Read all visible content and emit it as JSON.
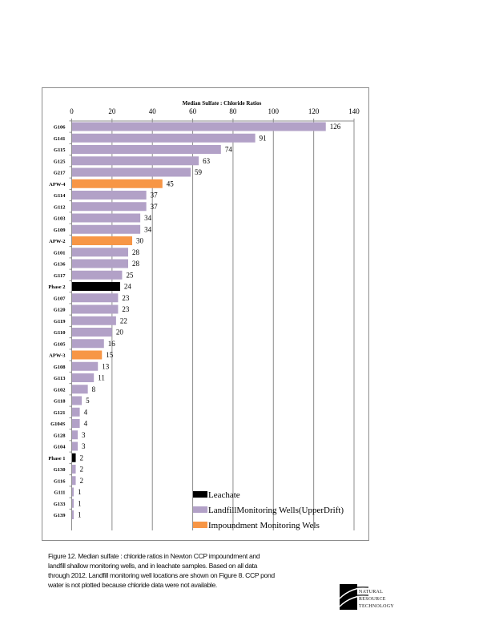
{
  "chart_data": {
    "type": "bar",
    "orientation": "horizontal",
    "title": "Median   Sulfate    : Chloride    Ratios",
    "xlabel": "",
    "ylabel": "",
    "xlim": [
      0,
      140
    ],
    "xticks": [
      0,
      20,
      40,
      60,
      80,
      100,
      120,
      140
    ],
    "xtick_labels": [
      "0",
      "20",
      "40",
      "60",
      "80",
      "100",
      "120",
      "140"
    ],
    "x_axis_position": "top",
    "grid": true,
    "legend_position": "bottom-right",
    "series_colors": {
      "Leachate": "#000000",
      "LandfillMonitoring Wells(UpperDrift)": "#b2a1c7",
      "Impoundment  Monitoring Wels": "#f79646"
    },
    "categories": [
      "G106",
      "G141",
      "G115",
      "G125",
      "G217",
      "APW-4",
      "G114",
      "G112",
      "G103",
      "G109",
      "APW-2",
      "G101",
      "G136",
      "G117",
      "Phase 2",
      "G107",
      "G120",
      "G119",
      "G110",
      "G105",
      "APW-3",
      "G108",
      "G113",
      "G102",
      "G118",
      "G121",
      "G104S",
      "G128",
      "G104",
      "Phase 1",
      "G130",
      "G116",
      "G111",
      "G133",
      "G139"
    ],
    "values": [
      126,
      91,
      74,
      63,
      59,
      45,
      37,
      37,
      34,
      34,
      30,
      28,
      28,
      25,
      24,
      23,
      23,
      22,
      20,
      16,
      15,
      13,
      11,
      8,
      5,
      4,
      4,
      3,
      3,
      2,
      2,
      2,
      1,
      1,
      1
    ],
    "value_labels": [
      "126",
      "91",
      "74",
      "63",
      "59",
      "45",
      "37",
      "37",
      "34",
      "34",
      "30",
      "28",
      "28",
      "25",
      "24",
      "23",
      "23",
      "22",
      "20",
      "16",
      "15",
      "13",
      "11",
      "8",
      "5",
      "4",
      "4",
      "3",
      "3",
      "2",
      "2",
      "2",
      "1",
      "1",
      "1"
    ],
    "groups": [
      "LandfillMonitoring Wells(UpperDrift)",
      "LandfillMonitoring Wells(UpperDrift)",
      "LandfillMonitoring Wells(UpperDrift)",
      "LandfillMonitoring Wells(UpperDrift)",
      "LandfillMonitoring Wells(UpperDrift)",
      "Impoundment  Monitoring Wels",
      "LandfillMonitoring Wells(UpperDrift)",
      "LandfillMonitoring Wells(UpperDrift)",
      "LandfillMonitoring Wells(UpperDrift)",
      "LandfillMonitoring Wells(UpperDrift)",
      "Impoundment  Monitoring Wels",
      "LandfillMonitoring Wells(UpperDrift)",
      "LandfillMonitoring Wells(UpperDrift)",
      "LandfillMonitoring Wells(UpperDrift)",
      "Leachate",
      "LandfillMonitoring Wells(UpperDrift)",
      "LandfillMonitoring Wells(UpperDrift)",
      "LandfillMonitoring Wells(UpperDrift)",
      "LandfillMonitoring Wells(UpperDrift)",
      "LandfillMonitoring Wells(UpperDrift)",
      "Impoundment  Monitoring Wels",
      "LandfillMonitoring Wells(UpperDrift)",
      "LandfillMonitoring Wells(UpperDrift)",
      "LandfillMonitoring Wells(UpperDrift)",
      "LandfillMonitoring Wells(UpperDrift)",
      "LandfillMonitoring Wells(UpperDrift)",
      "LandfillMonitoring Wells(UpperDrift)",
      "LandfillMonitoring Wells(UpperDrift)",
      "LandfillMonitoring Wells(UpperDrift)",
      "Leachate",
      "LandfillMonitoring Wells(UpperDrift)",
      "LandfillMonitoring Wells(UpperDrift)",
      "LandfillMonitoring Wells(UpperDrift)",
      "LandfillMonitoring Wells(UpperDrift)",
      "LandfillMonitoring Wells(UpperDrift)"
    ],
    "legend": [
      {
        "label": "Leachate",
        "color": "#000000"
      },
      {
        "label": "LandfillMonitoring Wells(UpperDrift)",
        "color": "#b2a1c7"
      },
      {
        "label": "Impoundment  Monitoring Wels",
        "color": "#f79646"
      }
    ]
  },
  "caption": "Figure 12. Median sulfate : chloride ratios in Newton CCP impoundment and landfill shallow monitoring wells, and in leachate samples. Based on all data through 2012. Landfill monitoring well locations are shown on Figure 8. CCP pond water is not plotted because chloride data were not available.",
  "logo": {
    "lines": [
      "NATURAL",
      "RESOURCE",
      "TECHNOLOGY"
    ]
  }
}
